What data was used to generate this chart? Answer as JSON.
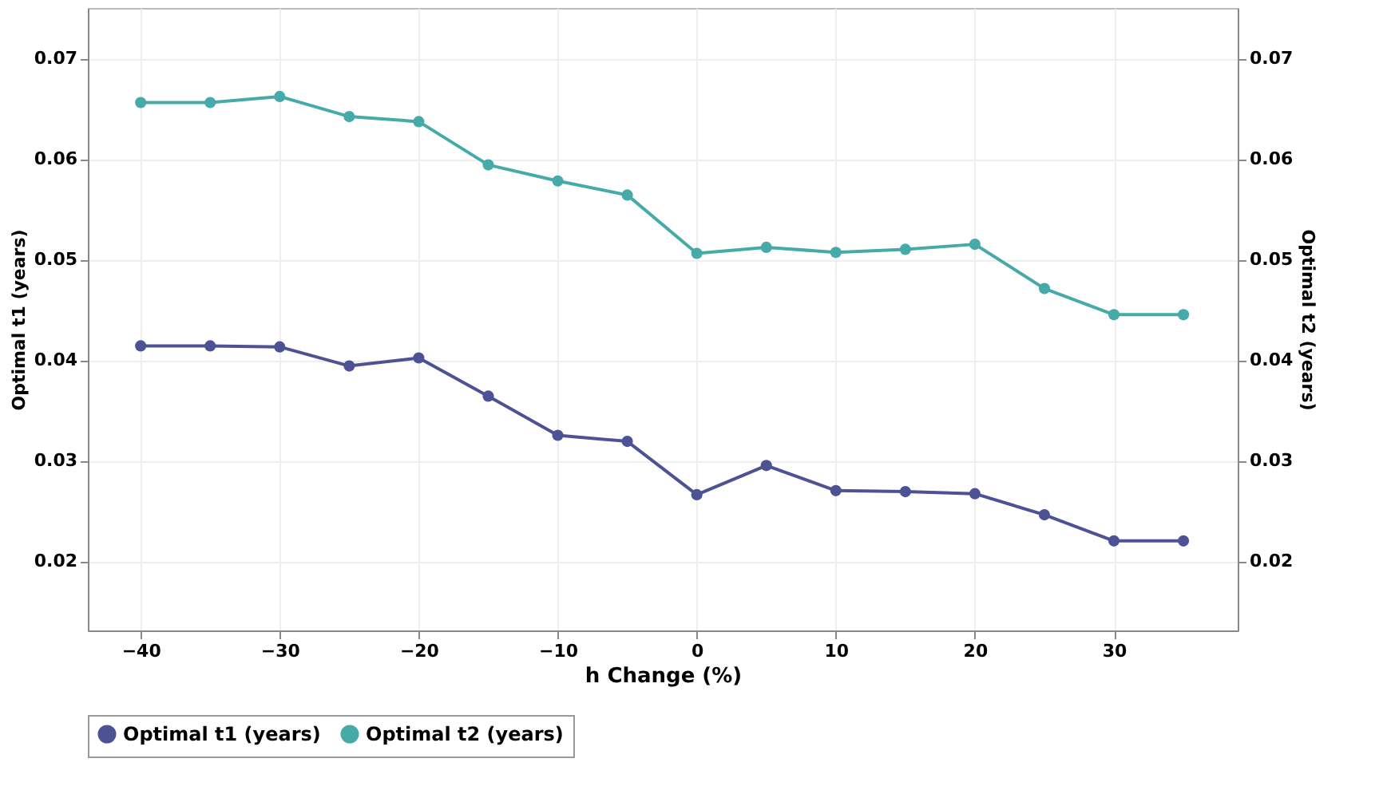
{
  "chart_data": {
    "type": "line",
    "xlabel": "h Change (%)",
    "ylabel": "Optimal t1 (years)",
    "y2label": "Optimal t2 (years)",
    "x": [
      -40,
      -35,
      -30,
      -25,
      -20,
      -15,
      -10,
      -5,
      0,
      5,
      10,
      15,
      20,
      25,
      30,
      35
    ],
    "series": [
      {
        "name": "Optimal t1 (years)",
        "color": "#4c5294",
        "values": [
          0.0414,
          0.0414,
          0.0413,
          0.0394,
          0.0402,
          0.0364,
          0.0325,
          0.0319,
          0.0266,
          0.0295,
          0.027,
          0.0269,
          0.0267,
          0.0246,
          0.022,
          0.022
        ]
      },
      {
        "name": "Optimal t2 (years)",
        "color": "#45aaa8",
        "axis": "y2",
        "values": [
          0.0656,
          0.0656,
          0.0662,
          0.0642,
          0.0637,
          0.0594,
          0.0578,
          0.0564,
          0.0506,
          0.0512,
          0.0507,
          0.051,
          0.0515,
          0.0471,
          0.0445,
          0.0445
        ]
      }
    ],
    "xlim": [
      -43.8,
      38.9
    ],
    "xticks": [
      -40,
      -30,
      -20,
      -10,
      0,
      10,
      20,
      30
    ],
    "ylim": [
      0.0131,
      0.075
    ],
    "yticks": [
      0.02,
      0.03,
      0.04,
      0.05,
      0.06,
      0.07
    ],
    "y2lim": [
      0.0131,
      0.075
    ],
    "y2ticks": [
      0.02,
      0.03,
      0.04,
      0.05,
      0.06,
      0.07
    ],
    "grid": true,
    "legend": "bottom",
    "marker": "circle",
    "line_style": "solid"
  }
}
